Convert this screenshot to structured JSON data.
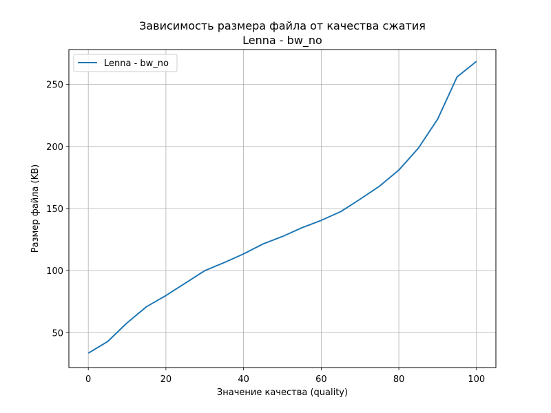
{
  "chart_data": {
    "type": "line",
    "title": "Зависимость размера файла от качества сжатия",
    "subtitle": "Lenna - bw_no",
    "xlabel": "Значение качества (quality)",
    "ylabel": "Размер файла (KB)",
    "xlim": [
      -5,
      105
    ],
    "ylim": [
      22,
      278
    ],
    "xticks": [
      0,
      20,
      40,
      60,
      80,
      100
    ],
    "yticks": [
      50,
      100,
      150,
      200,
      250
    ],
    "grid": true,
    "legend_position": "top-left",
    "x": [
      0,
      5,
      10,
      15,
      20,
      25,
      30,
      35,
      40,
      45,
      50,
      55,
      60,
      65,
      70,
      75,
      80,
      85,
      90,
      95,
      100
    ],
    "series": [
      {
        "name": "Lenna - bw_no",
        "color": "#1f77b4",
        "values": [
          33.6,
          43,
          58,
          71,
          80,
          90,
          100,
          106.5,
          113.5,
          121.5,
          127.5,
          134.5,
          140.5,
          147.5,
          157.5,
          168,
          181,
          198.5,
          222,
          256,
          268.5
        ]
      }
    ]
  }
}
